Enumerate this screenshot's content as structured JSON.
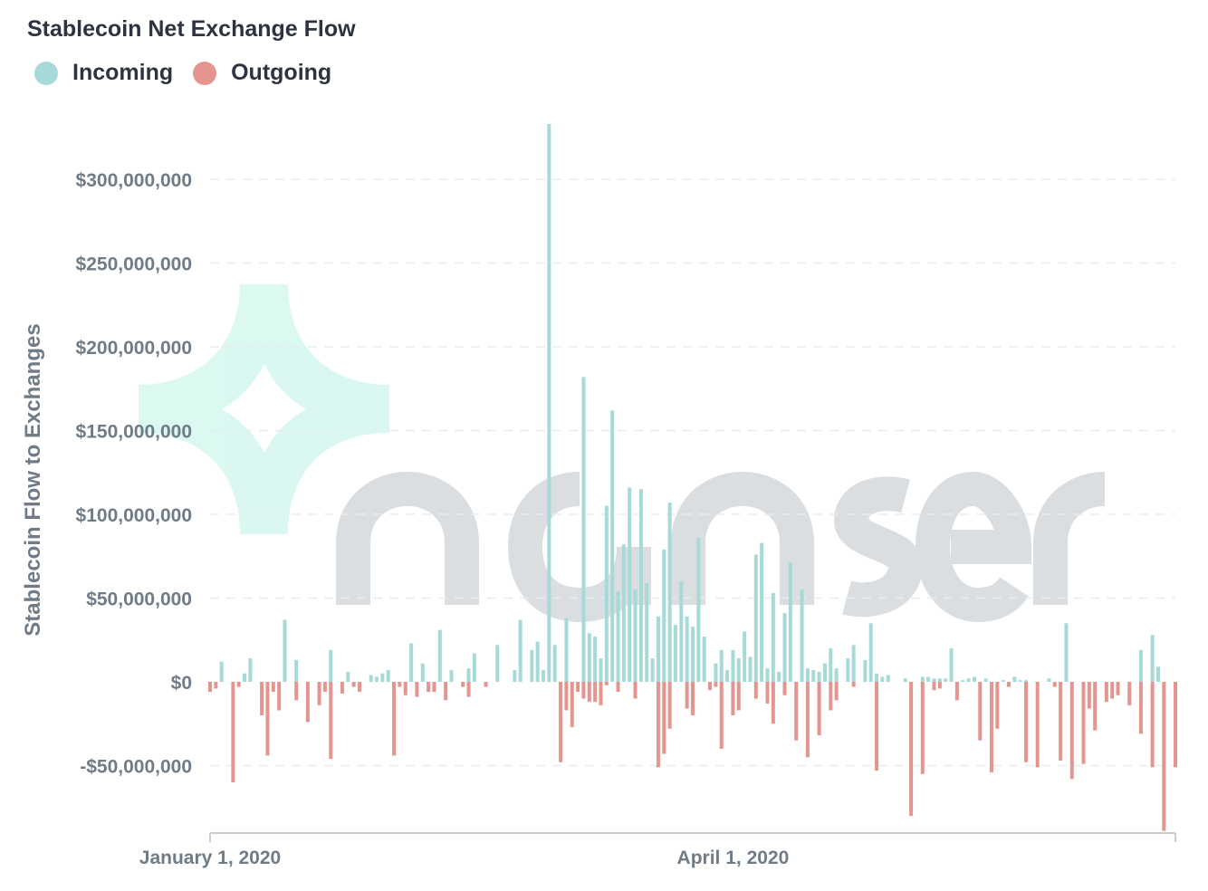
{
  "colors": {
    "incoming": "#a6d9d8",
    "outgoing": "#e49590",
    "axis": "#c9cfd5",
    "grid": "#e9ecef",
    "text": "#6f7c88"
  },
  "chart_data": {
    "type": "bar",
    "title": "Stablecoin Net Exchange Flow",
    "ylabel": "Stablecoin Flow to Exchanges",
    "xlabel": "",
    "legend": [
      {
        "name": "Incoming",
        "color": "#a6d9d8"
      },
      {
        "name": "Outgoing",
        "color": "#e49590"
      }
    ],
    "legend_position": "top-left",
    "ylim": [
      -90000000,
      330000000
    ],
    "y_ticks": [
      -50000000,
      0,
      50000000,
      100000000,
      150000000,
      200000000,
      250000000,
      300000000
    ],
    "y_tick_labels": [
      "-$50,000,000",
      "$0",
      "$50,000,000",
      "$100,000,000",
      "$150,000,000",
      "$200,000,000",
      "$250,000,000",
      "$300,000,000"
    ],
    "x_start": "2020-01-01",
    "x_end": "2020-06-17",
    "x_ticks": [
      "2020-01-01",
      "2020-04-01"
    ],
    "x_tick_labels": [
      "January 1, 2020",
      "April 1, 2020"
    ],
    "grid": "horizontal dashed",
    "series": [
      {
        "name": "Incoming",
        "x": [
          "2020-01-03",
          "2020-01-07",
          "2020-01-08",
          "2020-01-14",
          "2020-01-16",
          "2020-01-22",
          "2020-01-25",
          "2020-01-29",
          "2020-01-30",
          "2020-01-31",
          "2020-02-01",
          "2020-02-05",
          "2020-02-07",
          "2020-02-10",
          "2020-02-12",
          "2020-02-15",
          "2020-02-16",
          "2020-02-20",
          "2020-02-23",
          "2020-02-24",
          "2020-02-26",
          "2020-02-27",
          "2020-03-03",
          "2020-03-06",
          "2020-03-07",
          "2020-03-08",
          "2020-03-09",
          "2020-03-10",
          "2020-03-11",
          "2020-03-12",
          "2020-03-13",
          "2020-03-14",
          "2020-03-15",
          "2020-03-16",
          "2020-03-17",
          "2020-03-18",
          "2020-03-19",
          "2020-03-20",
          "2020-03-21",
          "2020-03-22",
          "2020-03-23",
          "2020-03-24",
          "2020-03-25",
          "2020-03-26",
          "2020-03-27",
          "2020-03-29",
          "2020-03-30",
          "2020-03-31",
          "2020-04-01",
          "2020-04-02",
          "2020-04-03",
          "2020-04-05",
          "2020-04-06",
          "2020-04-07",
          "2020-04-08",
          "2020-04-09",
          "2020-04-10",
          "2020-04-11",
          "2020-04-13",
          "2020-04-14",
          "2020-04-15",
          "2020-04-16",
          "2020-04-17",
          "2020-04-18",
          "2020-04-19",
          "2020-04-21",
          "2020-04-22",
          "2020-04-24",
          "2020-04-25",
          "2020-04-26",
          "2020-04-27",
          "2020-04-28",
          "2020-05-01",
          "2020-05-04",
          "2020-05-05",
          "2020-05-06",
          "2020-05-07",
          "2020-05-08",
          "2020-05-11",
          "2020-05-12",
          "2020-05-13",
          "2020-05-15",
          "2020-05-18",
          "2020-05-20",
          "2020-05-21",
          "2020-05-22",
          "2020-05-26",
          "2020-06-11",
          "2020-06-13",
          "2020-06-14"
        ],
        "values": [
          12000000,
          5000000,
          14000000,
          37000000,
          13000000,
          19000000,
          6000000,
          4000000,
          3000000,
          5000000,
          7000000,
          23000000,
          11000000,
          31000000,
          7000000,
          8000000,
          17000000,
          22000000,
          7000000,
          37000000,
          19000000,
          24000000,
          38000000,
          182000000,
          29000000,
          27000000,
          14000000,
          105000000,
          162000000,
          54000000,
          82000000,
          116000000,
          55000000,
          115000000,
          59000000,
          14000000,
          39000000,
          79000000,
          107000000,
          34000000,
          60000000,
          39000000,
          33000000,
          86000000,
          27000000,
          11000000,
          19000000,
          7000000,
          19000000,
          14000000,
          30000000,
          76000000,
          83000000,
          8000000,
          53000000,
          6000000,
          41000000,
          71000000,
          55000000,
          8000000,
          7000000,
          6000000,
          11000000,
          20000000,
          8000000,
          14000000,
          22000000,
          13000000,
          35000000,
          5000000,
          3000000,
          4000000,
          2000000,
          3000000,
          3000000,
          2000000,
          2000000,
          2000000,
          1000000,
          2000000,
          3000000,
          2000000,
          1000000,
          3000000,
          1000000,
          1000000,
          2000000,
          19000000,
          28000000,
          9000000
        ],
        "spike": {
          "x": "2020-02-29",
          "value": 333000000
        },
        "extra": [
          {
            "x": "2020-02-28",
            "value": 7000000
          },
          {
            "x": "2020-03-01",
            "value": 22000000
          },
          {
            "x": "2020-04-04",
            "value": 15000000
          },
          {
            "x": "2020-05-29",
            "value": 35000000
          },
          {
            "x": "2020-05-09",
            "value": 20000000
          }
        ]
      },
      {
        "name": "Outgoing",
        "x": [
          "2020-01-01",
          "2020-01-02",
          "2020-01-05",
          "2020-01-06",
          "2020-01-10",
          "2020-01-11",
          "2020-01-12",
          "2020-01-13",
          "2020-01-16",
          "2020-01-18",
          "2020-01-20",
          "2020-01-21",
          "2020-01-22",
          "2020-01-24",
          "2020-01-26",
          "2020-01-27",
          "2020-02-02",
          "2020-02-03",
          "2020-02-04",
          "2020-02-06",
          "2020-02-08",
          "2020-02-09",
          "2020-02-11",
          "2020-02-14",
          "2020-02-15",
          "2020-02-18",
          "2020-03-02",
          "2020-03-03",
          "2020-03-04",
          "2020-03-05",
          "2020-03-06",
          "2020-03-07",
          "2020-03-08",
          "2020-03-09",
          "2020-03-10",
          "2020-03-12",
          "2020-03-15",
          "2020-03-25",
          "2020-04-01",
          "2020-04-07",
          "2020-04-18",
          "2020-04-22",
          "2020-04-26",
          "2020-05-02",
          "2020-05-04",
          "2020-05-06",
          "2020-05-07",
          "2020-05-10",
          "2020-05-14",
          "2020-05-16",
          "2020-05-17",
          "2020-05-19",
          "2020-05-22",
          "2020-05-24",
          "2020-05-27",
          "2020-05-28",
          "2020-05-30",
          "2020-06-01",
          "2020-06-02",
          "2020-06-03",
          "2020-06-05",
          "2020-06-06",
          "2020-06-07",
          "2020-06-09",
          "2020-06-11",
          "2020-06-13",
          "2020-06-15",
          "2020-06-17"
        ],
        "values": [
          -6000000,
          -4000000,
          -60000000,
          -3000000,
          -20000000,
          -44000000,
          -6000000,
          -17000000,
          -11000000,
          -24000000,
          -14000000,
          -6000000,
          -46000000,
          -7000000,
          -3000000,
          -6000000,
          -44000000,
          -3000000,
          -8000000,
          -9000000,
          -6000000,
          -6000000,
          -11000000,
          -3000000,
          -9000000,
          -3000000,
          -48000000,
          -17000000,
          -27000000,
          -6000000,
          -10000000,
          -12000000,
          -12000000,
          -14000000,
          -2000000,
          -6000000,
          -10000000,
          -20000000,
          -20000000,
          -13000000,
          -17000000,
          -3000000,
          -53000000,
          -80000000,
          -55000000,
          -5000000,
          -4000000,
          -11000000,
          -35000000,
          -54000000,
          -28000000,
          -3000000,
          -48000000,
          -51000000,
          -3000000,
          -47000000,
          -58000000,
          -49000000,
          -16000000,
          -29000000,
          -12000000,
          -10000000,
          -8000000,
          -14000000,
          -31000000,
          -51000000,
          -89000000,
          -51000000
        ],
        "extra": [
          {
            "x": "2020-03-19",
            "value": -51000000
          },
          {
            "x": "2020-03-20",
            "value": -43000000
          },
          {
            "x": "2020-03-21",
            "value": -28000000
          },
          {
            "x": "2020-03-24",
            "value": -16000000
          },
          {
            "x": "2020-03-28",
            "value": -5000000
          },
          {
            "x": "2020-03-29",
            "value": -3000000
          },
          {
            "x": "2020-03-30",
            "value": -40000000
          },
          {
            "x": "2020-04-02",
            "value": -17000000
          },
          {
            "x": "2020-04-05",
            "value": -10000000
          },
          {
            "x": "2020-04-08",
            "value": -25000000
          },
          {
            "x": "2020-04-10",
            "value": -8000000
          },
          {
            "x": "2020-04-12",
            "value": -35000000
          },
          {
            "x": "2020-04-14",
            "value": -45000000
          },
          {
            "x": "2020-04-16",
            "value": -32000000
          },
          {
            "x": "2020-04-19",
            "value": -11000000
          }
        ]
      }
    ]
  }
}
